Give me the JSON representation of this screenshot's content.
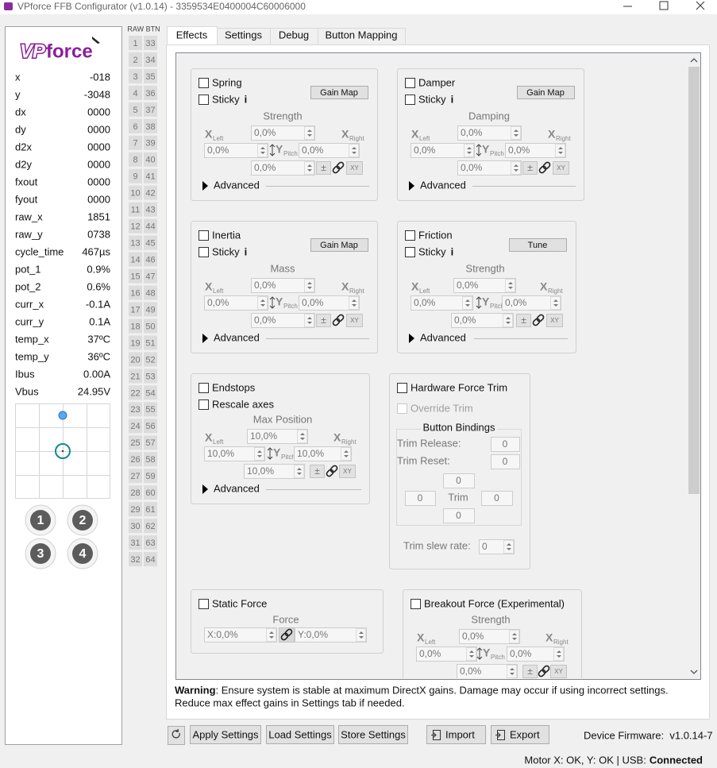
{
  "window": {
    "title": "VPforce FFB Configurator (v1.0.14) - 3359534E0400004C60006000"
  },
  "sidebar": {
    "logo": [
      "VP",
      "force"
    ],
    "telemetry": [
      [
        "x",
        "-018"
      ],
      [
        "y",
        "-3048"
      ],
      [
        "dx",
        "0000"
      ],
      [
        "dy",
        "0000"
      ],
      [
        "d2x",
        "0000"
      ],
      [
        "d2y",
        "0000"
      ],
      [
        "fxout",
        "0000"
      ],
      [
        "fyout",
        "0000"
      ],
      [
        "raw_x",
        "1851"
      ],
      [
        "raw_y",
        "0738"
      ],
      [
        "cycle_time",
        "467µs"
      ],
      [
        "pot_1",
        "0.9%"
      ],
      [
        "pot_2",
        "0.6%"
      ],
      [
        "curr_x",
        "-0.1A"
      ],
      [
        "curr_y",
        "0.1A"
      ],
      [
        "temp_x",
        "37ºC"
      ],
      [
        "temp_y",
        "36ºC"
      ],
      [
        "Ibus",
        "0.00A"
      ],
      [
        "Vbus",
        "24.95V"
      ]
    ],
    "joystick_buttons": [
      1,
      2,
      3,
      4
    ]
  },
  "button_grid": {
    "header": "RAW BTN",
    "buttons": [
      1,
      2,
      3,
      4,
      5,
      6,
      7,
      8,
      9,
      10,
      11,
      12,
      13,
      14,
      15,
      16,
      17,
      18,
      19,
      20,
      21,
      22,
      23,
      24,
      25,
      26,
      27,
      28,
      29,
      30,
      31,
      32,
      33,
      34,
      35,
      36,
      37,
      38,
      39,
      40,
      41,
      42,
      43,
      44,
      45,
      46,
      47,
      48,
      49,
      50,
      51,
      52,
      53,
      54,
      55,
      56,
      57,
      58,
      59,
      60,
      61,
      62,
      63,
      64
    ]
  },
  "tabs": [
    "Effects",
    "Settings",
    "Debug",
    "Button Mapping"
  ],
  "active_tab": 0,
  "axis_labels": {
    "x": "X",
    "left": "Left",
    "y": "Y",
    "pitch": "Pitch",
    "right": "Right"
  },
  "effects": {
    "spring": {
      "checkboxes": [
        "Spring",
        "Sticky"
      ],
      "info": "i",
      "button": "Gain Map",
      "parameter": "Strength",
      "fields": {
        "top": "0,0%",
        "left": "0,0%",
        "right": "0,0%",
        "bottom": "0,0%"
      },
      "sign": "±",
      "xy": "XY",
      "advanced": "Advanced"
    },
    "damper": {
      "checkboxes": [
        "Damper",
        "Sticky"
      ],
      "info": "i",
      "button": "Gain Map",
      "parameter": "Damping",
      "fields": {
        "top": "0,0%",
        "left": "0,0%",
        "right": "0,0%",
        "bottom": "0,0%"
      },
      "sign": "±",
      "xy": "XY",
      "advanced": "Advanced"
    },
    "inertia": {
      "checkboxes": [
        "Inertia",
        "Sticky"
      ],
      "info": "i",
      "button": "Gain Map",
      "parameter": "Mass",
      "fields": {
        "top": "0,0%",
        "left": "0,0%",
        "right": "0,0%",
        "bottom": "0,0%"
      },
      "sign": "±",
      "xy": "XY",
      "advanced": "Advanced"
    },
    "friction": {
      "checkboxes": [
        "Friction",
        "Sticky"
      ],
      "info": "i",
      "button": "Tune",
      "parameter": "Strength",
      "fields": {
        "top": "0,0%",
        "left": "0,0%",
        "right": "0,0%",
        "bottom": "0,0%"
      },
      "sign": "±",
      "xy": "XY",
      "advanced": "Advanced"
    },
    "endstops": {
      "checkboxes": [
        "Endstops",
        "Rescale axes"
      ],
      "parameter": "Max Position",
      "fields": {
        "top": "10,0%",
        "left": "10,0%",
        "right": "10,0%",
        "bottom": "10,0%"
      },
      "sign": "±",
      "xy": "XY",
      "advanced": "Advanced"
    },
    "breakout": {
      "checkboxes": [
        "Breakout Force (Experimental)"
      ],
      "parameter": "Strength",
      "fields": {
        "top": "0,0%",
        "left": "0,0%",
        "right": "0,0%",
        "bottom": "0,0%"
      },
      "sign": "±",
      "xy": "XY"
    },
    "static_force": {
      "checkboxes": [
        "Static Force"
      ],
      "parameter": "Force",
      "fields": {
        "left": "X:0,0%",
        "right": "Y:0,0%"
      }
    },
    "force_trim": {
      "checkbox": "Hardware Force Trim",
      "override": "Override Trim",
      "bindings_title": "Button Bindings",
      "release_label": "Trim Release:",
      "release": 0,
      "reset_label": "Trim Reset:",
      "reset": 0,
      "center": "Trim",
      "up": 0,
      "left": 0,
      "right": 0,
      "down": 0,
      "slew_label": "Trim slew rate:",
      "slew": 0
    }
  },
  "footer": {
    "warning_label": "Warning",
    "warning_text": ": Ensure system is stable at maximum DirectX gains. Damage may occur if using incorrect settings.",
    "warning_text2": "Reduce max effect gains in Settings tab if needed.",
    "buttons": [
      "Apply Settings",
      "Load Settings",
      "Store Settings",
      "Import",
      "Export"
    ],
    "firmware": "Device Firmware:  v1.0.14-7"
  },
  "status": {
    "text": "Motor X: OK, Y: OK | USB:",
    "connection": "Connected"
  }
}
